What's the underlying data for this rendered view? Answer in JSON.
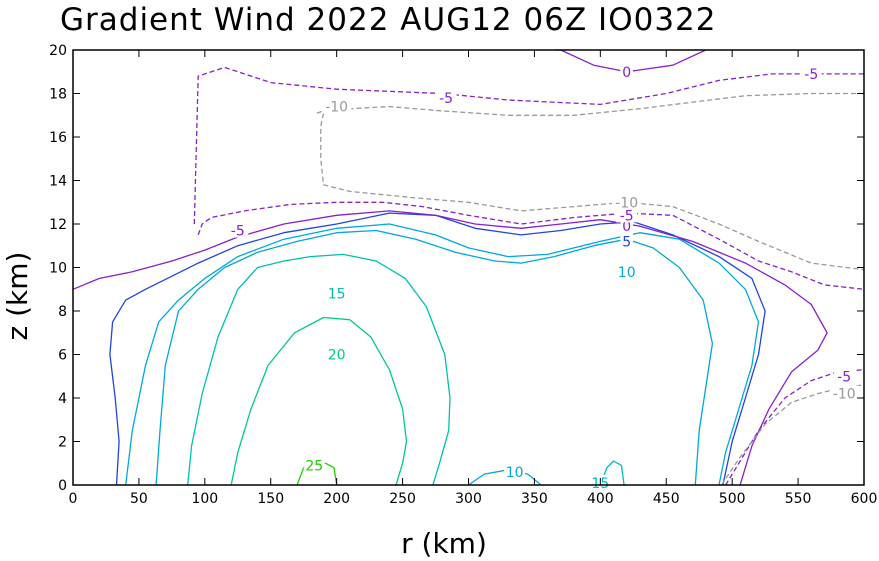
{
  "chart_data": {
    "type": "contour",
    "title": "Gradient Wind 2022 AUG12 06Z  IO0322",
    "xlabel": "r (km)",
    "ylabel": "z (km)",
    "xlim": [
      0,
      600
    ],
    "ylim": [
      0,
      20
    ],
    "xticks": [
      0,
      50,
      100,
      150,
      200,
      250,
      300,
      350,
      400,
      450,
      500,
      550,
      600
    ],
    "yticks": [
      0,
      2,
      4,
      6,
      8,
      10,
      12,
      14,
      16,
      18,
      20
    ],
    "contour_interval": 5,
    "contours": [
      {
        "id": "c25",
        "level": 25,
        "label": "25",
        "color": "#22cc00",
        "dash": false,
        "points": [
          [
            170,
            0
          ],
          [
            175,
            0.8
          ],
          [
            185,
            1.2
          ],
          [
            198,
            0.8
          ],
          [
            200,
            0
          ]
        ],
        "label_at": [
          183,
          0.9
        ]
      },
      {
        "id": "c20",
        "level": 20,
        "label": "20",
        "color": "#00cc80",
        "dash": false,
        "points": [
          [
            120,
            0
          ],
          [
            125,
            1.5
          ],
          [
            135,
            3.5
          ],
          [
            148,
            5.5
          ],
          [
            168,
            7.0
          ],
          [
            190,
            7.7
          ],
          [
            210,
            7.6
          ],
          [
            226,
            6.8
          ],
          [
            240,
            5.3
          ],
          [
            250,
            3.5
          ],
          [
            253,
            2.0
          ],
          [
            250,
            1.0
          ],
          [
            245,
            0
          ]
        ],
        "label_at": [
          200,
          6.0
        ]
      },
      {
        "id": "c15a",
        "level": 15,
        "label": "15",
        "color": "#00c0b0",
        "dash": false,
        "points": [
          [
            87,
            0
          ],
          [
            90,
            1.8
          ],
          [
            98,
            4.2
          ],
          [
            110,
            6.8
          ],
          [
            125,
            9.0
          ],
          [
            140,
            10.0
          ],
          [
            160,
            10.3
          ],
          [
            180,
            10.5
          ],
          [
            205,
            10.6
          ],
          [
            230,
            10.3
          ],
          [
            252,
            9.5
          ],
          [
            268,
            8.2
          ],
          [
            282,
            6.0
          ],
          [
            286,
            4.0
          ],
          [
            285,
            2.5
          ],
          [
            278,
            1.0
          ],
          [
            273,
            0
          ]
        ],
        "label_at": [
          200,
          8.8
        ]
      },
      {
        "id": "c15b",
        "level": 15,
        "label": "15",
        "color": "#00c0b0",
        "dash": false,
        "points": [
          [
            400,
            0
          ],
          [
            405,
            0.8
          ],
          [
            410,
            1.1
          ],
          [
            416,
            0.9
          ],
          [
            418,
            0
          ],
          [
            420,
            0
          ]
        ],
        "label_at": [
          400,
          0.1
        ]
      },
      {
        "id": "c10a",
        "level": 10,
        "label": "10",
        "color": "#00a8dd",
        "dash": false,
        "points": [
          [
            63,
            0
          ],
          [
            66,
            2.5
          ],
          [
            70,
            5.5
          ],
          [
            80,
            8.0
          ],
          [
            95,
            9.0
          ],
          [
            115,
            10.0
          ],
          [
            140,
            10.7
          ],
          [
            170,
            11.2
          ],
          [
            200,
            11.6
          ],
          [
            230,
            11.7
          ],
          [
            260,
            11.3
          ],
          [
            290,
            10.7
          ],
          [
            320,
            10.3
          ],
          [
            340,
            10.2
          ],
          [
            365,
            10.5
          ],
          [
            395,
            11.0
          ],
          [
            420,
            11.3
          ],
          [
            440,
            10.9
          ],
          [
            460,
            10.0
          ],
          [
            478,
            8.5
          ],
          [
            485,
            6.5
          ],
          [
            480,
            4.5
          ],
          [
            475,
            2.5
          ],
          [
            472,
            0
          ]
        ],
        "label_at": [
          420,
          9.8
        ],
        "extra_segments": [
          {
            "points": [
              [
                300,
                0
              ],
              [
                312,
                0.5
              ],
              [
                330,
                0.7
              ],
              [
                345,
                0.5
              ],
              [
                355,
                0
              ]
            ]
          }
        ]
      },
      {
        "id": "c10b",
        "level": 10,
        "label": "10",
        "color": "#00a8dd",
        "dash": false,
        "points": [
          [
            40,
            0
          ],
          [
            45,
            2.5
          ],
          [
            55,
            5.5
          ],
          [
            65,
            7.5
          ],
          [
            80,
            8.5
          ],
          [
            100,
            9.5
          ],
          [
            125,
            10.5
          ],
          [
            160,
            11.3
          ],
          [
            200,
            11.8
          ],
          [
            240,
            12.0
          ],
          [
            275,
            11.5
          ],
          [
            300,
            10.9
          ],
          [
            330,
            10.5
          ],
          [
            360,
            10.6
          ],
          [
            400,
            11.2
          ],
          [
            430,
            11.6
          ],
          [
            460,
            11.3
          ],
          [
            490,
            10.2
          ],
          [
            510,
            9.0
          ],
          [
            520,
            7.5
          ],
          [
            515,
            5.5
          ],
          [
            505,
            3.5
          ],
          [
            495,
            1.5
          ],
          [
            490,
            0
          ]
        ],
        "label_at": [
          335,
          0.6
        ]
      },
      {
        "id": "c5",
        "level": 5,
        "label": "5",
        "color": "#2244dd",
        "dash": false,
        "points": [
          [
            33,
            0
          ],
          [
            35,
            2.0
          ],
          [
            32,
            4.0
          ],
          [
            28,
            6.0
          ],
          [
            30,
            7.5
          ],
          [
            40,
            8.5
          ],
          [
            55,
            9.0
          ],
          [
            75,
            9.6
          ],
          [
            95,
            10.2
          ],
          [
            125,
            11.0
          ],
          [
            160,
            11.6
          ],
          [
            200,
            12.0
          ],
          [
            240,
            12.5
          ],
          [
            275,
            12.4
          ],
          [
            305,
            11.8
          ],
          [
            340,
            11.5
          ],
          [
            370,
            11.7
          ],
          [
            400,
            12.0
          ],
          [
            425,
            12.1
          ],
          [
            455,
            11.5
          ],
          [
            490,
            10.5
          ],
          [
            515,
            9.5
          ],
          [
            525,
            8.0
          ],
          [
            520,
            6.0
          ],
          [
            510,
            4.0
          ],
          [
            500,
            2.0
          ],
          [
            493,
            0
          ]
        ],
        "label_at": [
          418,
          11.2
        ]
      },
      {
        "id": "c0",
        "level": 0,
        "label": "0",
        "color": "#8820cc",
        "dash": false,
        "points": [
          [
            0,
            9.0
          ],
          [
            20,
            9.5
          ],
          [
            45,
            9.8
          ],
          [
            75,
            10.3
          ],
          [
            100,
            10.8
          ],
          [
            125,
            11.4
          ],
          [
            160,
            12.0
          ],
          [
            200,
            12.4
          ],
          [
            240,
            12.6
          ],
          [
            275,
            12.4
          ],
          [
            305,
            12.0
          ],
          [
            340,
            11.8
          ],
          [
            370,
            12.0
          ],
          [
            400,
            12.2
          ],
          [
            430,
            11.9
          ],
          [
            470,
            11.2
          ],
          [
            510,
            10.2
          ],
          [
            540,
            9.2
          ],
          [
            560,
            8.3
          ],
          [
            572,
            7.0
          ],
          [
            565,
            6.2
          ],
          [
            545,
            5.2
          ],
          [
            528,
            3.5
          ],
          [
            515,
            1.8
          ],
          [
            506,
            0
          ]
        ],
        "label_at": [
          420,
          11.9
        ],
        "extra_segments": [
          {
            "points": [
              [
                365,
                20
              ],
              [
                370,
                20
              ],
              [
                395,
                19.3
              ],
              [
                420,
                19.0
              ],
              [
                455,
                19.3
              ],
              [
                480,
                20
              ]
            ]
          }
        ]
      },
      {
        "id": "cm5",
        "level": -5,
        "label": "-5",
        "color": "#8820cc",
        "dash": true,
        "points": [
          [
            95,
            11.5
          ],
          [
            98,
            12.0
          ],
          [
            105,
            12.3
          ],
          [
            130,
            12.6
          ],
          [
            165,
            12.9
          ],
          [
            200,
            13.0
          ],
          [
            235,
            13.0
          ],
          [
            265,
            12.8
          ],
          [
            300,
            12.4
          ],
          [
            340,
            12.0
          ],
          [
            380,
            12.3
          ],
          [
            420,
            12.5
          ],
          [
            455,
            12.4
          ],
          [
            490,
            11.3
          ],
          [
            520,
            10.3
          ],
          [
            545,
            9.8
          ],
          [
            570,
            9.2
          ],
          [
            600,
            9.0
          ]
        ],
        "label_at": [
          420,
          12.4
        ],
        "extra_segments": [
          {
            "points": [
              [
                92,
                12.0
              ],
              [
                95,
                18.8
              ],
              [
                115,
                19.2
              ],
              [
                150,
                18.5
              ],
              [
                200,
                18.2
              ],
              [
                280,
                18.0
              ],
              [
                330,
                17.7
              ],
              [
                400,
                17.5
              ],
              [
                450,
                18.0
              ],
              [
                490,
                18.6
              ],
              [
                530,
                18.9
              ],
              [
                570,
                18.9
              ],
              [
                600,
                18.9
              ]
            ]
          },
          {
            "points": [
              [
                495,
                0
              ],
              [
                505,
                1.0
              ],
              [
                520,
                2.5
              ],
              [
                540,
                4.0
              ],
              [
                560,
                4.8
              ],
              [
                580,
                5.2
              ],
              [
                600,
                5.3
              ]
            ]
          }
        ]
      },
      {
        "id": "cm10",
        "level": -10,
        "label": "-10",
        "color": "#999999",
        "dash": true,
        "points": [
          [
            185,
            17.1
          ],
          [
            190,
            17.2
          ],
          [
            210,
            17.3
          ],
          [
            240,
            17.4
          ],
          [
            280,
            17.2
          ],
          [
            330,
            17.0
          ],
          [
            380,
            17.0
          ],
          [
            430,
            17.3
          ],
          [
            470,
            17.6
          ],
          [
            510,
            17.9
          ],
          [
            560,
            18.0
          ],
          [
            600,
            18.0
          ]
        ],
        "label_at": [
          195,
          17.1
        ],
        "extra_segments": [
          {
            "points": [
              [
                190,
                17.1
              ],
              [
                188,
                16.5
              ],
              [
                188,
                15.0
              ],
              [
                190,
                13.8
              ],
              [
                210,
                13.5
              ],
              [
                260,
                13.2
              ],
              [
                300,
                13.0
              ],
              [
                340,
                12.6
              ],
              [
                380,
                12.8
              ],
              [
                420,
                13.0
              ],
              [
                455,
                12.8
              ],
              [
                490,
                12.0
              ],
              [
                520,
                11.2
              ],
              [
                560,
                10.2
              ],
              [
                600,
                9.9
              ]
            ]
          },
          {
            "points": [
              [
                492,
                0
              ],
              [
                505,
                1.2
              ],
              [
                525,
                2.8
              ],
              [
                545,
                3.8
              ],
              [
                565,
                4.2
              ],
              [
                585,
                4.5
              ],
              [
                600,
                4.6
              ]
            ]
          }
        ]
      }
    ],
    "labels": [
      {
        "text": "25",
        "value": 25,
        "x": 183,
        "y": 0.9,
        "color": "#22cc00"
      },
      {
        "text": "20",
        "value": 20,
        "x": 200,
        "y": 6.0,
        "color": "#00cc80"
      },
      {
        "text": "15",
        "value": 15,
        "x": 200,
        "y": 8.8,
        "color": "#00c0b0"
      },
      {
        "text": "15",
        "value": 15,
        "x": 400,
        "y": 0.1,
        "color": "#00c0b0"
      },
      {
        "text": "10",
        "value": 10,
        "x": 420,
        "y": 9.8,
        "color": "#00a8dd"
      },
      {
        "text": "10",
        "value": 10,
        "x": 335,
        "y": 0.6,
        "color": "#00a8dd"
      },
      {
        "text": "5",
        "value": 5,
        "x": 420,
        "y": 11.2,
        "color": "#2244dd"
      },
      {
        "text": "0",
        "value": 0,
        "x": 420,
        "y": 11.9,
        "color": "#8820cc"
      },
      {
        "text": "0",
        "value": 0,
        "x": 420,
        "y": 19.0,
        "color": "#8820cc"
      },
      {
        "text": "-5",
        "value": -5,
        "x": 420,
        "y": 12.4,
        "color": "#8820cc"
      },
      {
        "text": "-5",
        "value": -5,
        "x": 125,
        "y": 11.7,
        "color": "#8820cc"
      },
      {
        "text": "-5",
        "value": -5,
        "x": 283,
        "y": 17.8,
        "color": "#8820cc"
      },
      {
        "text": "-5",
        "value": -5,
        "x": 560,
        "y": 18.9,
        "color": "#8820cc"
      },
      {
        "text": "-5",
        "value": -5,
        "x": 585,
        "y": 5.0,
        "color": "#8820cc"
      },
      {
        "text": "-10",
        "value": -10,
        "x": 200,
        "y": 17.4,
        "color": "#999999"
      },
      {
        "text": "-10",
        "value": -10,
        "x": 420,
        "y": 13.0,
        "color": "#999999"
      },
      {
        "text": "-10",
        "value": -10,
        "x": 585,
        "y": 4.2,
        "color": "#999999"
      }
    ]
  }
}
